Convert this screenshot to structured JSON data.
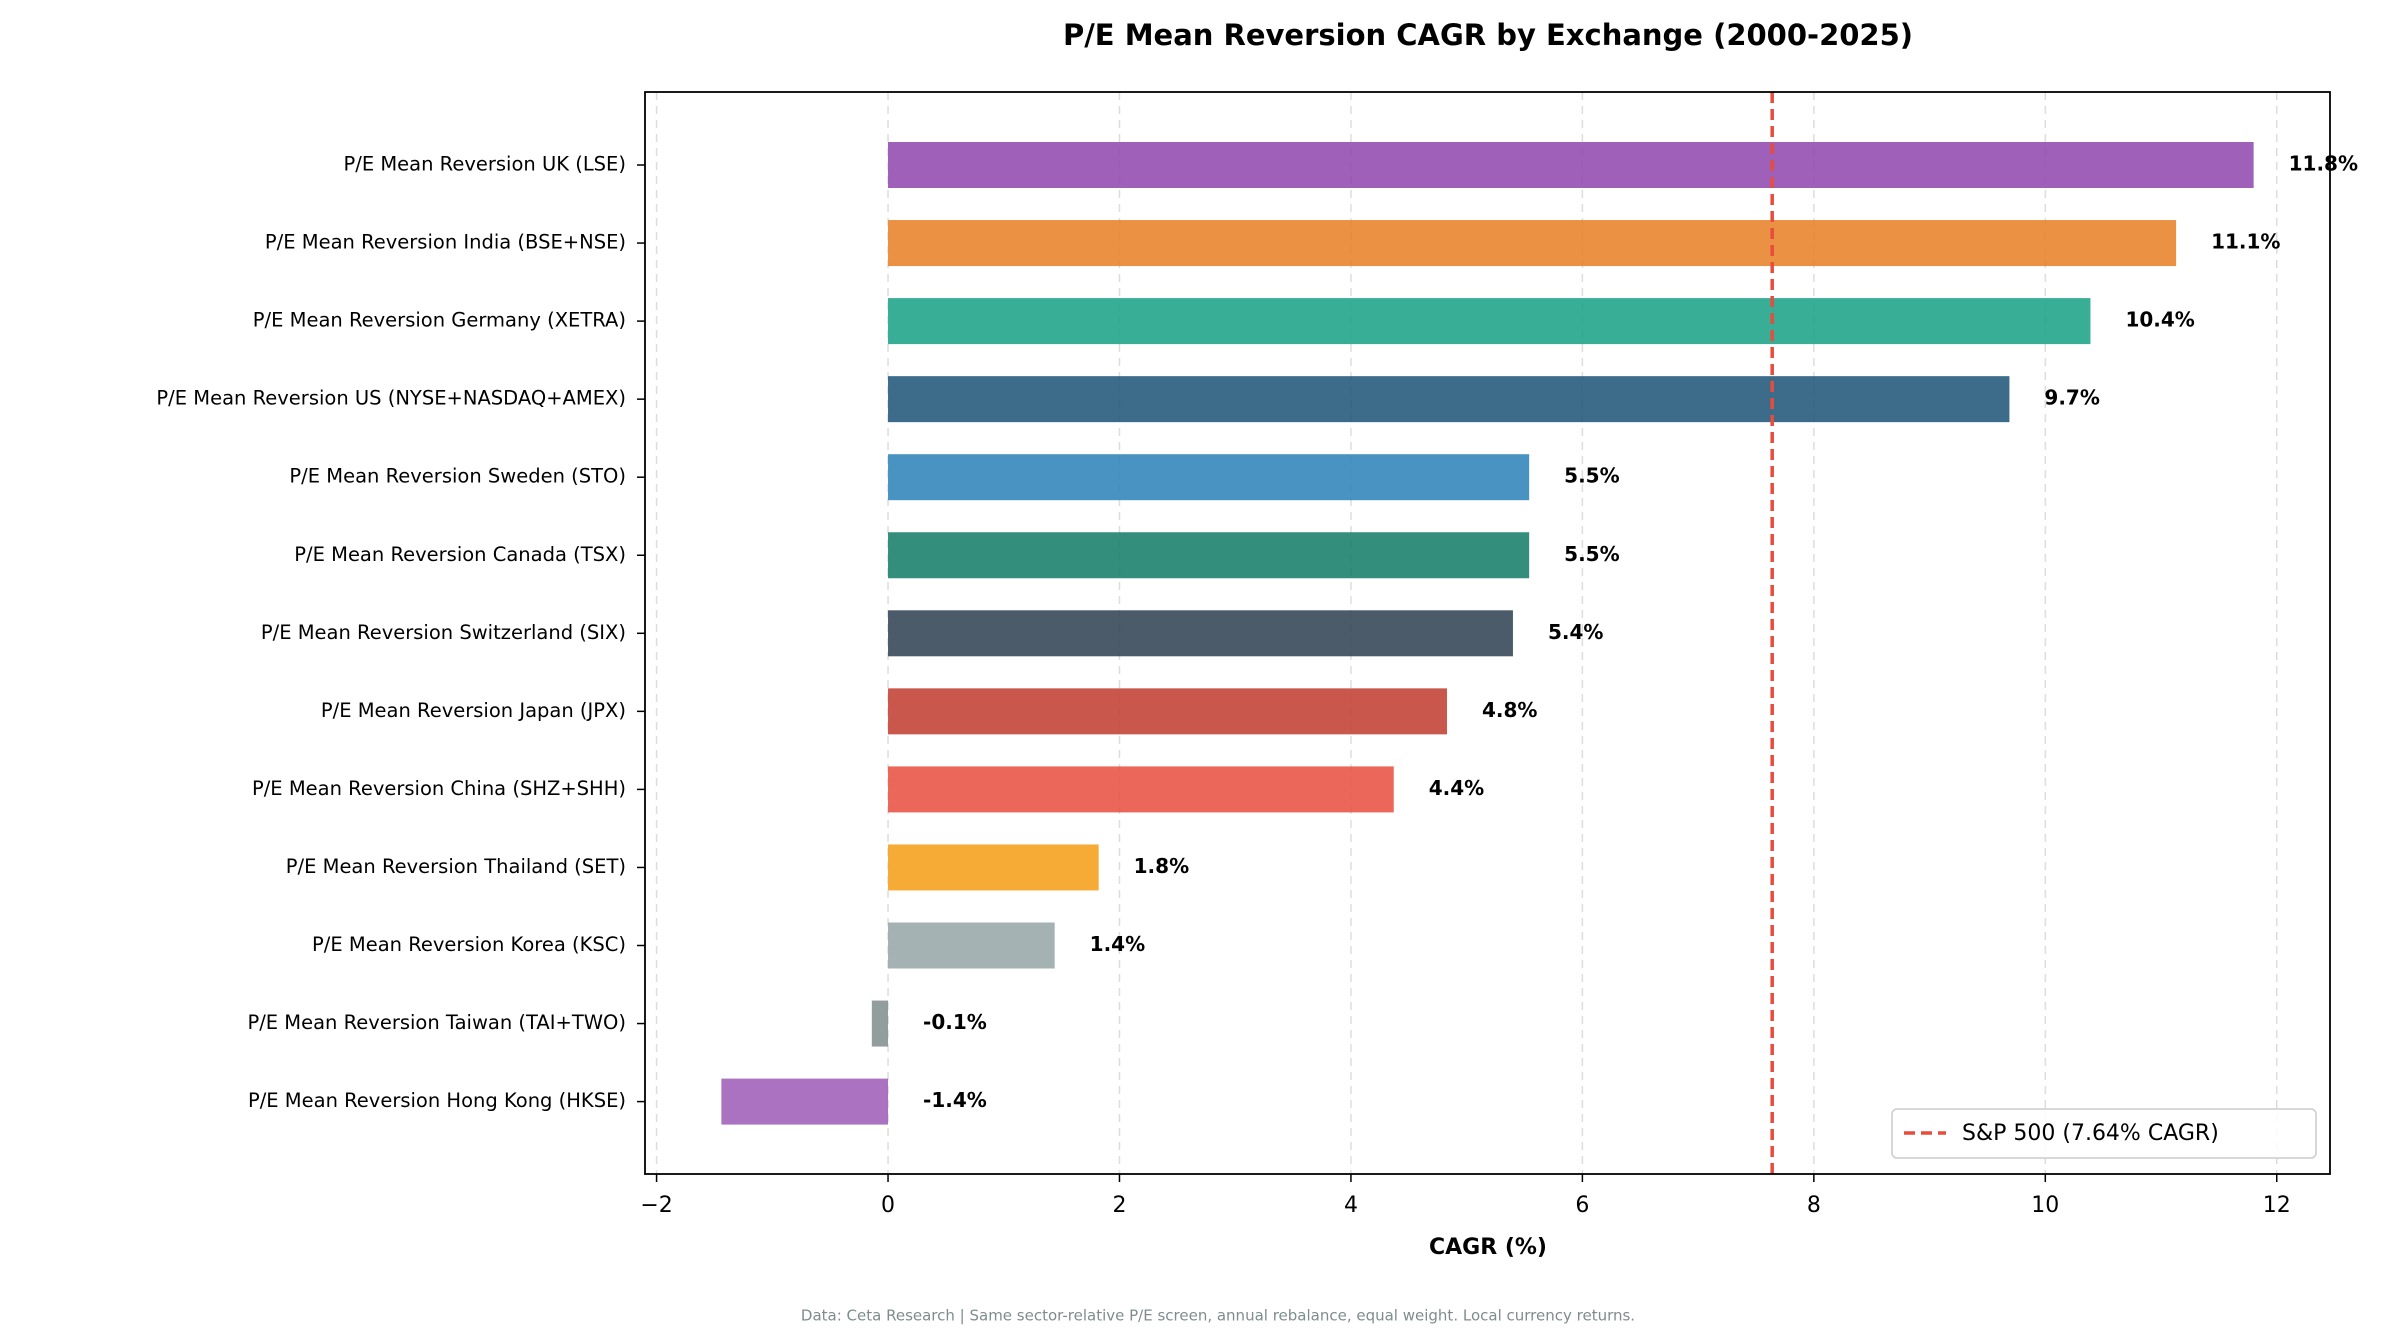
{
  "chart_data": {
    "type": "barh",
    "title": "P/E Mean Reversion CAGR by Exchange (2000-2025)",
    "x_label": "CAGR (%)",
    "note": "Data: Ceta Research | Same sector-relative P/E screen, annual rebalance, equal weight. Local currency returns.",
    "categories": [
      "P/E Mean Reversion UK (LSE)",
      "P/E Mean Reversion India (BSE+NSE)",
      "P/E Mean Reversion Germany (XETRA)",
      "P/E Mean Reversion US (NYSE+NASDAQ+AMEX)",
      "P/E Mean Reversion Sweden (STO)",
      "P/E Mean Reversion Canada (TSX)",
      "P/E Mean Reversion Switzerland (SIX)",
      "P/E Mean Reversion Japan (JPX)",
      "P/E Mean Reversion China (SHZ+SHH)",
      "P/E Mean Reversion Thailand (SET)",
      "P/E Mean Reversion Korea (KSC)",
      "P/E Mean Reversion Taiwan (TAI+TWO)",
      "P/E Mean Reversion Hong Kong (HKSE)"
    ],
    "values": [
      11.8,
      11.13,
      10.39,
      9.69,
      5.54,
      5.54,
      5.4,
      4.83,
      4.37,
      1.82,
      1.44,
      -0.14,
      -1.44
    ],
    "value_labels": [
      "11.8%",
      "11.1%",
      "10.4%",
      "9.7%",
      "5.5%",
      "5.5%",
      "5.4%",
      "4.8%",
      "4.4%",
      "1.8%",
      "1.4%",
      "-0.1%",
      "-1.4%"
    ],
    "colors": [
      "#8e44ad",
      "#e67e22",
      "#16a085",
      "#1a5276",
      "#2980b9",
      "#117a65",
      "#2c3e50",
      "#c0392b",
      "#e74c3c",
      "#f39c12",
      "#95a5a6",
      "#7f8c8d",
      "#9b59b6"
    ],
    "reference_line": {
      "value": 7.64,
      "label": "S&P 500 (7.64% CAGR)",
      "color": "#e74c3c"
    },
    "xlim": [
      -2.1,
      12.46
    ],
    "xticks": [
      {
        "value": -2,
        "label": "−2"
      },
      0,
      2,
      4,
      6,
      8,
      10,
      12
    ],
    "grid": true,
    "legend": "lower right"
  }
}
